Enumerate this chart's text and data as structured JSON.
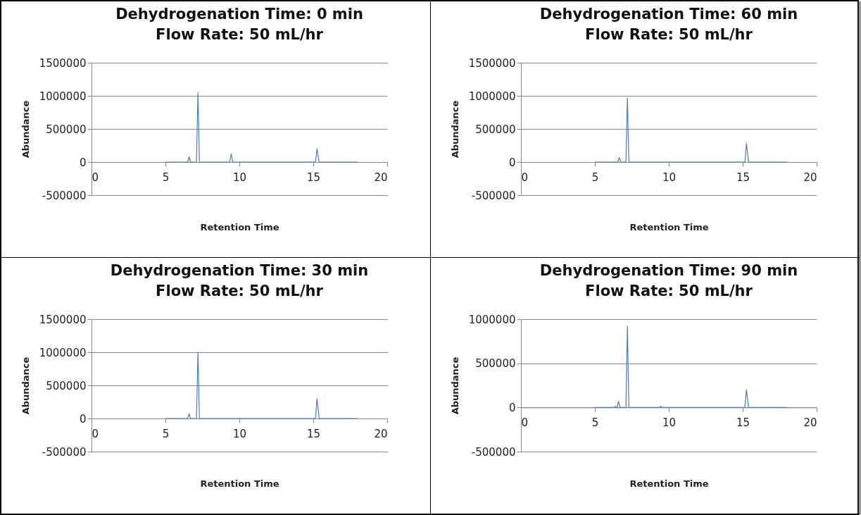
{
  "chart_data": [
    {
      "type": "line",
      "title": "Dehydrogenation Time: 0 min",
      "subtitle": "Flow Rate: 50 mL/hr",
      "xlabel": "Retention Time",
      "ylabel": "Abundance",
      "xlim": [
        0,
        20
      ],
      "xticks": [
        0,
        5,
        10,
        15,
        20
      ],
      "ylim": [
        -500000,
        1500000
      ],
      "yticks": [
        -500000,
        0,
        500000,
        1000000,
        1500000
      ],
      "grid": "y",
      "series": [
        {
          "color": "#4a7ebb",
          "x": [
            5,
            6.5,
            6.6,
            6.7,
            7.1,
            7.2,
            7.3,
            9.35,
            9.45,
            9.55,
            15.15,
            15.25,
            15.4,
            18
          ],
          "values": [
            0,
            0,
            80000,
            0,
            0,
            1050000,
            0,
            0,
            120000,
            0,
            0,
            200000,
            0,
            0
          ]
        }
      ]
    },
    {
      "type": "line",
      "title": "Dehydrogenation Time: 60 min",
      "subtitle": "Flow Rate: 50 mL/hr",
      "xlabel": "Retention Time",
      "ylabel": "Abundance",
      "xlim": [
        0,
        20
      ],
      "xticks": [
        0,
        5,
        10,
        15,
        20
      ],
      "ylim": [
        -500000,
        1500000
      ],
      "yticks": [
        -500000,
        0,
        500000,
        1000000,
        1500000
      ],
      "grid": "y",
      "series": [
        {
          "color": "#4a7ebb",
          "x": [
            5,
            6.55,
            6.65,
            6.75,
            7.1,
            7.2,
            7.3,
            15.15,
            15.25,
            15.4,
            18
          ],
          "values": [
            0,
            0,
            70000,
            0,
            0,
            970000,
            0,
            0,
            280000,
            0,
            0
          ]
        }
      ]
    },
    {
      "type": "line",
      "title": "Dehydrogenation Time: 30 min",
      "subtitle": "Flow Rate: 50 mL/hr",
      "xlabel": "Retention Time",
      "ylabel": "Abundance",
      "xlim": [
        0,
        20
      ],
      "xticks": [
        0,
        5,
        10,
        15,
        20
      ],
      "ylim": [
        -500000,
        1500000
      ],
      "yticks": [
        -500000,
        0,
        500000,
        1000000,
        1500000
      ],
      "grid": "y",
      "series": [
        {
          "color": "#4a7ebb",
          "x": [
            5,
            6.5,
            6.6,
            6.7,
            7.1,
            7.2,
            7.3,
            15.15,
            15.25,
            15.4,
            18
          ],
          "values": [
            0,
            0,
            70000,
            0,
            0,
            1000000,
            0,
            0,
            300000,
            0,
            0
          ]
        }
      ]
    },
    {
      "type": "line",
      "title": "Dehydrogenation Time: 90 min",
      "subtitle": "Flow Rate: 50 mL/hr",
      "xlabel": "Retention Time",
      "ylabel": "Abundance",
      "xlim": [
        0,
        20
      ],
      "xticks": [
        0,
        5,
        10,
        15,
        20
      ],
      "ylim": [
        -500000,
        1000000
      ],
      "yticks": [
        -500000,
        0,
        500000,
        1000000
      ],
      "grid": "y",
      "series": [
        {
          "color": "#4a7ebb",
          "x": [
            5,
            6.3,
            6.4,
            6.5,
            6.6,
            6.7,
            7.1,
            7.2,
            7.3,
            9.35,
            9.45,
            9.55,
            15.15,
            15.25,
            15.4,
            18
          ],
          "values": [
            0,
            0,
            10000,
            0,
            70000,
            0,
            0,
            920000,
            0,
            0,
            15000,
            0,
            0,
            200000,
            0,
            0
          ]
        }
      ]
    }
  ]
}
